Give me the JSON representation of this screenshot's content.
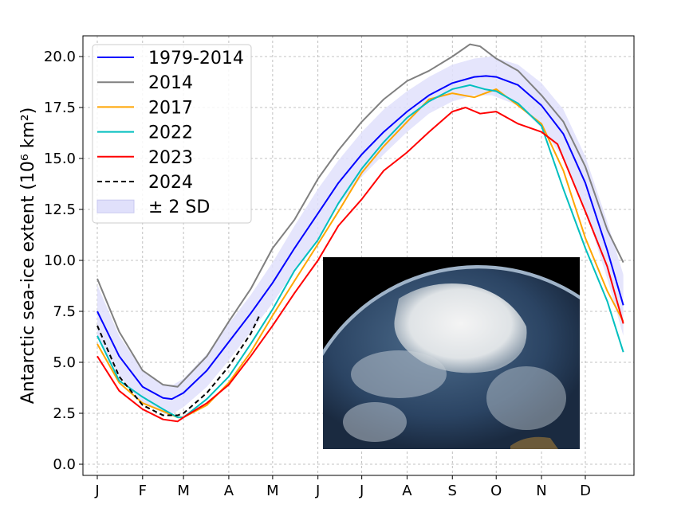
{
  "chart_data": {
    "type": "line",
    "title": "",
    "xlabel": "",
    "ylabel": "Antarctic sea-ice extent (10⁶ km²)",
    "x_tick_labels": [
      "J",
      "F",
      "M",
      "A",
      "M",
      "J",
      "J",
      "A",
      "S",
      "O",
      "N",
      "D"
    ],
    "x_tick_days": [
      0,
      31,
      59,
      90,
      120,
      151,
      181,
      212,
      243,
      273,
      304,
      334
    ],
    "y_ticks": [
      0.0,
      2.5,
      5.0,
      7.5,
      10.0,
      12.5,
      15.0,
      17.5,
      20.0
    ],
    "y_tick_labels": [
      "0.0",
      "2.5",
      "5.0",
      "7.5",
      "10.0",
      "12.5",
      "15.0",
      "17.5",
      "20.0"
    ],
    "ylim": [
      -0.55,
      21.0
    ],
    "xlim_days": [
      -10,
      367
    ],
    "grid": true,
    "legend_position": "top-left",
    "band": {
      "name": "± 2 SD",
      "color": "#e0e0fb",
      "x": [
        0,
        15,
        31,
        45,
        52,
        59,
        75,
        90,
        105,
        120,
        135,
        151,
        165,
        181,
        196,
        212,
        227,
        243,
        258,
        270,
        288,
        304,
        319,
        334,
        349,
        360
      ],
      "lower": [
        6.2,
        4.3,
        3.0,
        2.5,
        2.5,
        2.8,
        3.8,
        5.1,
        6.5,
        7.9,
        9.5,
        11.1,
        12.7,
        14.1,
        15.2,
        16.3,
        17.2,
        17.8,
        18.1,
        18.1,
        17.6,
        16.5,
        15.0,
        12.5,
        9.1,
        6.3
      ],
      "upper": [
        8.8,
        6.3,
        4.6,
        3.9,
        3.9,
        4.2,
        5.4,
        6.9,
        8.3,
        9.9,
        11.7,
        13.5,
        14.9,
        16.3,
        17.4,
        18.3,
        19.0,
        19.6,
        19.9,
        20.0,
        19.6,
        18.7,
        17.4,
        15.1,
        11.9,
        9.3
      ]
    },
    "series": [
      {
        "name": "1979-2014",
        "color": "#0000ff",
        "dashed": false,
        "x": [
          0,
          15,
          31,
          45,
          51,
          59,
          75,
          90,
          105,
          120,
          135,
          151,
          165,
          181,
          196,
          212,
          227,
          243,
          258,
          266,
          273,
          288,
          304,
          319,
          334,
          349,
          360
        ],
        "values": [
          7.5,
          5.3,
          3.8,
          3.25,
          3.2,
          3.5,
          4.6,
          6.0,
          7.4,
          8.9,
          10.6,
          12.3,
          13.8,
          15.2,
          16.3,
          17.3,
          18.1,
          18.7,
          19.0,
          19.05,
          19.0,
          18.6,
          17.6,
          16.2,
          13.8,
          10.5,
          7.8
        ]
      },
      {
        "name": "2014",
        "color": "#808080",
        "dashed": false,
        "x": [
          0,
          15,
          31,
          45,
          55,
          59,
          75,
          90,
          105,
          120,
          135,
          151,
          165,
          181,
          196,
          212,
          227,
          243,
          255,
          262,
          273,
          288,
          304,
          319,
          334,
          349,
          360
        ],
        "values": [
          9.1,
          6.5,
          4.6,
          3.9,
          3.8,
          4.1,
          5.3,
          7.0,
          8.6,
          10.6,
          12.0,
          14.0,
          15.4,
          16.8,
          17.9,
          18.8,
          19.3,
          20.0,
          20.6,
          20.5,
          19.9,
          19.3,
          18.1,
          16.8,
          14.6,
          11.5,
          9.9
        ]
      },
      {
        "name": "2017",
        "color": "#ffa500",
        "dashed": false,
        "x": [
          0,
          15,
          31,
          45,
          55,
          59,
          75,
          90,
          105,
          120,
          135,
          151,
          165,
          181,
          196,
          212,
          227,
          243,
          258,
          273,
          288,
          304,
          319,
          334,
          349,
          360
        ],
        "values": [
          5.9,
          4.0,
          3.0,
          2.6,
          2.3,
          2.3,
          2.9,
          4.0,
          5.5,
          7.3,
          9.0,
          10.8,
          12.4,
          14.3,
          15.6,
          16.8,
          17.9,
          18.2,
          18.0,
          18.4,
          17.6,
          16.7,
          14.4,
          11.1,
          8.5,
          7.0
        ]
      },
      {
        "name": "2022",
        "color": "#00bfbf",
        "dashed": false,
        "x": [
          0,
          15,
          31,
          45,
          55,
          59,
          75,
          90,
          105,
          120,
          135,
          151,
          165,
          181,
          196,
          212,
          227,
          243,
          255,
          265,
          273,
          288,
          304,
          319,
          334,
          349,
          360
        ],
        "values": [
          6.3,
          4.1,
          3.3,
          2.7,
          2.3,
          2.3,
          3.2,
          4.3,
          5.9,
          7.6,
          9.5,
          11.0,
          12.8,
          14.5,
          15.8,
          17.0,
          17.8,
          18.4,
          18.6,
          18.4,
          18.3,
          17.7,
          16.6,
          13.5,
          10.6,
          8.0,
          5.5
        ]
      },
      {
        "name": "2023",
        "color": "#ff0000",
        "dashed": false,
        "x": [
          0,
          15,
          31,
          45,
          55,
          59,
          75,
          90,
          105,
          120,
          135,
          151,
          165,
          181,
          196,
          212,
          227,
          243,
          252,
          262,
          273,
          288,
          304,
          315,
          334,
          349,
          360
        ],
        "values": [
          5.3,
          3.6,
          2.7,
          2.2,
          2.1,
          2.3,
          3.0,
          3.9,
          5.3,
          6.8,
          8.4,
          10.0,
          11.7,
          13.0,
          14.4,
          15.3,
          16.3,
          17.3,
          17.5,
          17.2,
          17.3,
          16.7,
          16.3,
          15.7,
          12.4,
          9.7,
          6.9
        ]
      },
      {
        "name": "2024",
        "color": "#000000",
        "dashed": true,
        "x": [
          0,
          15,
          31,
          45,
          55,
          59,
          75,
          90,
          105,
          111
        ],
        "values": [
          6.8,
          4.3,
          2.9,
          2.4,
          2.4,
          2.5,
          3.5,
          4.8,
          6.4,
          7.3
        ]
      }
    ],
    "inset_image": "Earth viewed from above Antarctica"
  }
}
